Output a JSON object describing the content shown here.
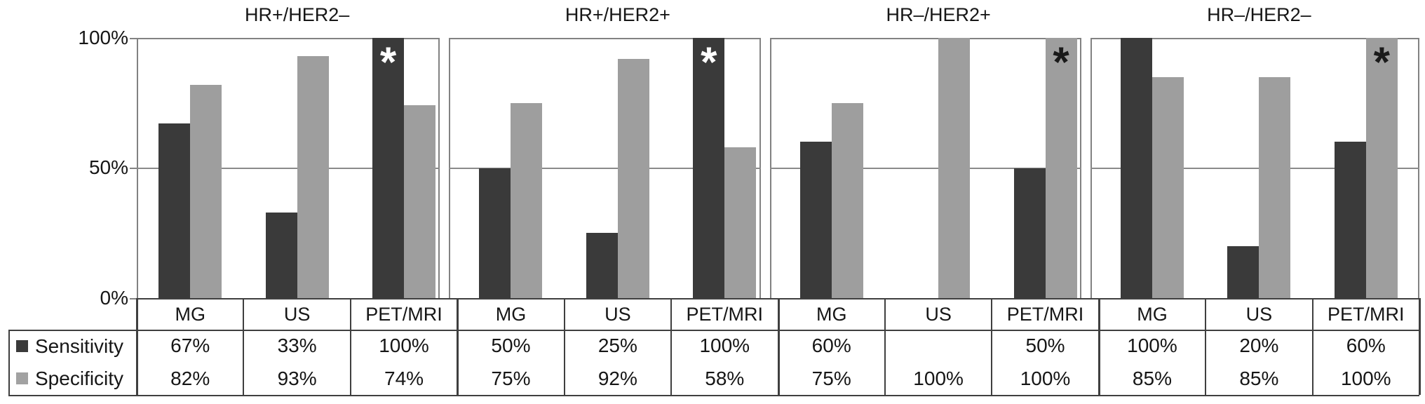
{
  "figure": {
    "y_axis_labels": [
      "100%",
      "50%",
      "0%"
    ],
    "legend": [
      {
        "label": "Sensitivity",
        "color": "#3a3a3a"
      },
      {
        "label": "Specificity",
        "color": "#a2a2a2"
      }
    ]
  },
  "chart_data": {
    "type": "bar",
    "ylim": [
      0,
      100
    ],
    "y_ticks": [
      "0%",
      "50%",
      "100%"
    ],
    "grid": "horizontal gridline at 50% in each panel",
    "legend_position": "bottom-left of data table",
    "categories": [
      "MG",
      "US",
      "PET/MRI"
    ],
    "series_names": [
      "Sensitivity",
      "Specificity"
    ],
    "panels": [
      {
        "title": "HR+/HER2–",
        "sensitivity": [
          67,
          33,
          100
        ],
        "sensitivity_labels": [
          "67%",
          "33%",
          "100%"
        ],
        "specificity": [
          82,
          93,
          74
        ],
        "specificity_labels": [
          "82%",
          "93%",
          "74%"
        ],
        "asterisk": {
          "category": "PET/MRI",
          "series": "Sensitivity",
          "color": "#ffffff"
        }
      },
      {
        "title": "HR+/HER2+",
        "sensitivity": [
          50,
          25,
          100
        ],
        "sensitivity_labels": [
          "50%",
          "25%",
          "100%"
        ],
        "specificity": [
          75,
          92,
          58
        ],
        "specificity_labels": [
          "75%",
          "92%",
          "58%"
        ],
        "asterisk": {
          "category": "PET/MRI",
          "series": "Sensitivity",
          "color": "#ffffff"
        }
      },
      {
        "title": "HR–/HER2+",
        "sensitivity": [
          60,
          null,
          50
        ],
        "sensitivity_labels": [
          "60%",
          "",
          "50%"
        ],
        "specificity": [
          75,
          100,
          100
        ],
        "specificity_labels": [
          "75%",
          "100%",
          "100%"
        ],
        "asterisk": {
          "category": "PET/MRI",
          "series": "Specificity",
          "color": "#1a1a1a"
        }
      },
      {
        "title": "HR–/HER2–",
        "sensitivity": [
          100,
          20,
          60
        ],
        "sensitivity_labels": [
          "100%",
          "20%",
          "60%"
        ],
        "specificity": [
          85,
          85,
          100
        ],
        "specificity_labels": [
          "85%",
          "85%",
          "100%"
        ],
        "asterisk": {
          "category": "PET/MRI",
          "series": "Specificity",
          "color": "#1a1a1a"
        }
      }
    ]
  },
  "colors": {
    "sensitivity_bar": "#3a3a3a",
    "specificity_bar": "#9e9e9e",
    "panel_border": "#828282",
    "gridline": "#8a8a8a",
    "table_line": "#3f3f3f",
    "text": "#161616",
    "background": "#ffffff"
  }
}
